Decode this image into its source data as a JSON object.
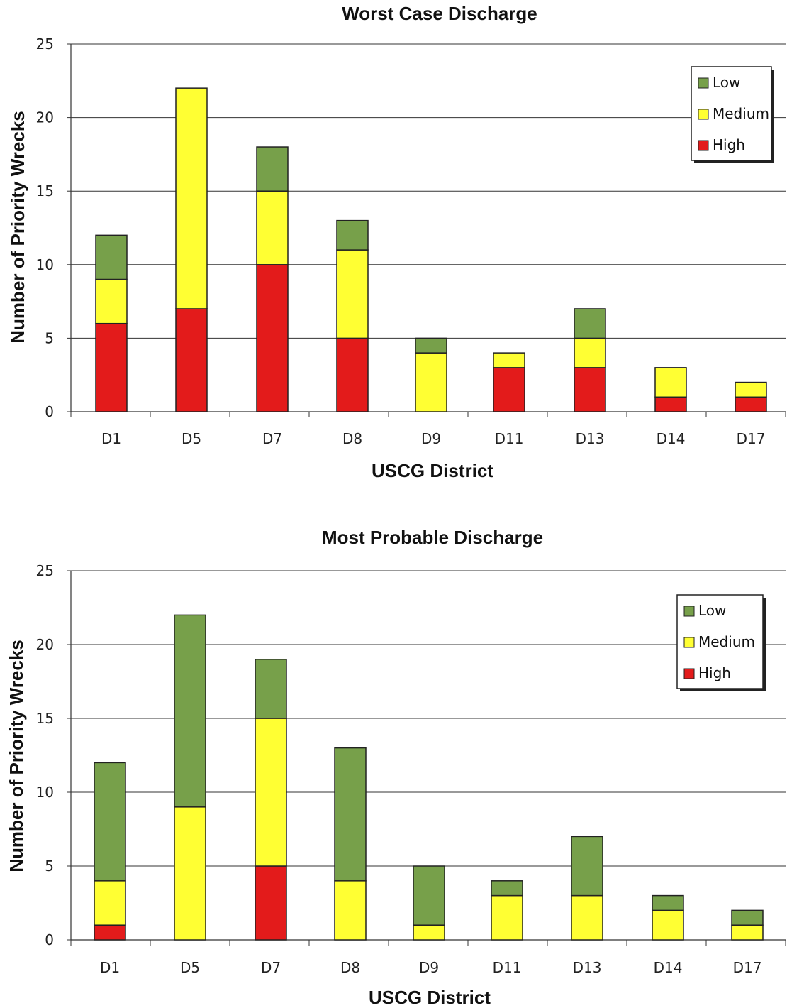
{
  "colors": {
    "Low": "#77a04a",
    "Medium": "#ffff33",
    "High": "#e31b1b",
    "grid": "#333333"
  },
  "chart_data": [
    {
      "type": "bar",
      "stacked": true,
      "title": "Worst Case Discharge",
      "xlabel": "USCG District",
      "ylabel": "Number of Priority Wrecks",
      "ylim": [
        0,
        25
      ],
      "yticks": [
        0,
        5,
        10,
        15,
        20,
        25
      ],
      "grid": true,
      "legend_position": "top-right",
      "categories": [
        "D1",
        "D5",
        "D7",
        "D8",
        "D9",
        "D11",
        "D13",
        "D14",
        "D17"
      ],
      "series": [
        {
          "name": "High",
          "values": [
            6,
            7,
            10,
            5,
            0,
            3,
            3,
            1,
            1
          ]
        },
        {
          "name": "Medium",
          "values": [
            3,
            15,
            5,
            6,
            4,
            1,
            2,
            2,
            1
          ]
        },
        {
          "name": "Low",
          "values": [
            3,
            0,
            3,
            2,
            1,
            0,
            2,
            0,
            0
          ]
        }
      ],
      "legend_order": [
        "Low",
        "Medium",
        "High"
      ]
    },
    {
      "type": "bar",
      "stacked": true,
      "title": "Most Probable Discharge",
      "xlabel": "USCG District",
      "ylabel": "Number of Priority Wrecks",
      "ylim": [
        0,
        25
      ],
      "yticks": [
        0,
        5,
        10,
        15,
        20,
        25
      ],
      "grid": true,
      "legend_position": "top-right",
      "categories": [
        "D1",
        "D5",
        "D7",
        "D8",
        "D9",
        "D11",
        "D13",
        "D14",
        "D17"
      ],
      "series": [
        {
          "name": "High",
          "values": [
            1,
            0,
            5,
            0,
            0,
            0,
            0,
            0,
            0
          ]
        },
        {
          "name": "Medium",
          "values": [
            3,
            9,
            10,
            4,
            1,
            3,
            3,
            2,
            1
          ]
        },
        {
          "name": "Low",
          "values": [
            8,
            13,
            4,
            9,
            4,
            1,
            4,
            1,
            1
          ]
        }
      ],
      "legend_order": [
        "Low",
        "Medium",
        "High"
      ]
    }
  ]
}
